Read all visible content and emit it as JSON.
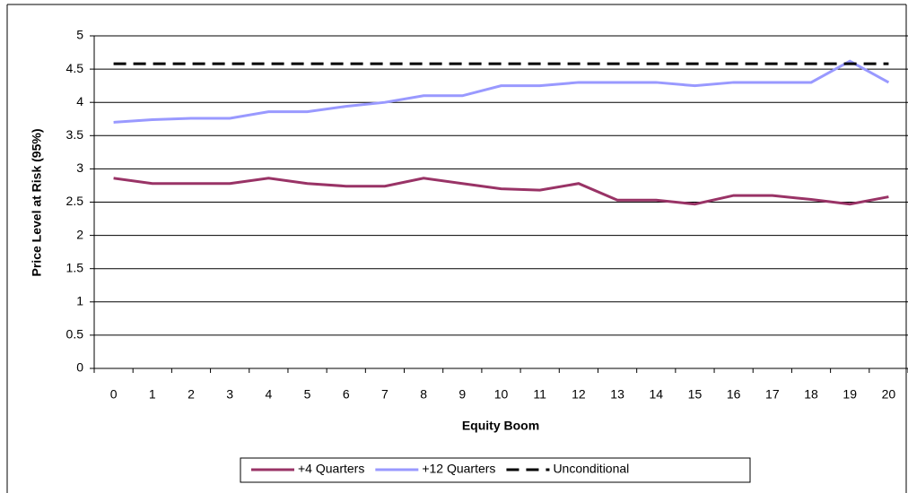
{
  "chart_data": {
    "type": "line",
    "x_label": "Equity Boom",
    "y_label": "Price Level at Risk (95%)",
    "categories": [
      "0",
      "1",
      "2",
      "3",
      "4",
      "5",
      "6",
      "7",
      "8",
      "9",
      "10",
      "11",
      "12",
      "13",
      "14",
      "15",
      "16",
      "17",
      "18",
      "19",
      "20"
    ],
    "series": [
      {
        "name": "+4 Quarters",
        "color": "#993366",
        "dash": false,
        "values": [
          2.86,
          2.78,
          2.78,
          2.78,
          2.86,
          2.78,
          2.74,
          2.74,
          2.86,
          2.78,
          2.7,
          2.68,
          2.78,
          2.53,
          2.53,
          2.47,
          2.6,
          2.6,
          2.54,
          2.47,
          2.58
        ]
      },
      {
        "name": "+12 Quarters",
        "color": "#9999ff",
        "dash": false,
        "values": [
          3.7,
          3.74,
          3.76,
          3.76,
          3.86,
          3.86,
          3.94,
          4.0,
          4.1,
          4.1,
          4.25,
          4.25,
          4.3,
          4.3,
          4.3,
          4.25,
          4.3,
          4.3,
          4.3,
          4.62,
          4.3
        ]
      },
      {
        "name": "Unconditional",
        "color": "#000000",
        "dash": true,
        "values": [
          4.58,
          4.58,
          4.58,
          4.58,
          4.58,
          4.58,
          4.58,
          4.58,
          4.58,
          4.58,
          4.58,
          4.58,
          4.58,
          4.58,
          4.58,
          4.58,
          4.58,
          4.58,
          4.58,
          4.58,
          4.58
        ]
      }
    ],
    "ylim": [
      0,
      5
    ],
    "yticks": [
      0,
      0.5,
      1,
      1.5,
      2,
      2.5,
      3,
      3.5,
      4,
      4.5,
      5
    ],
    "grid": true,
    "legend": "bottom"
  }
}
